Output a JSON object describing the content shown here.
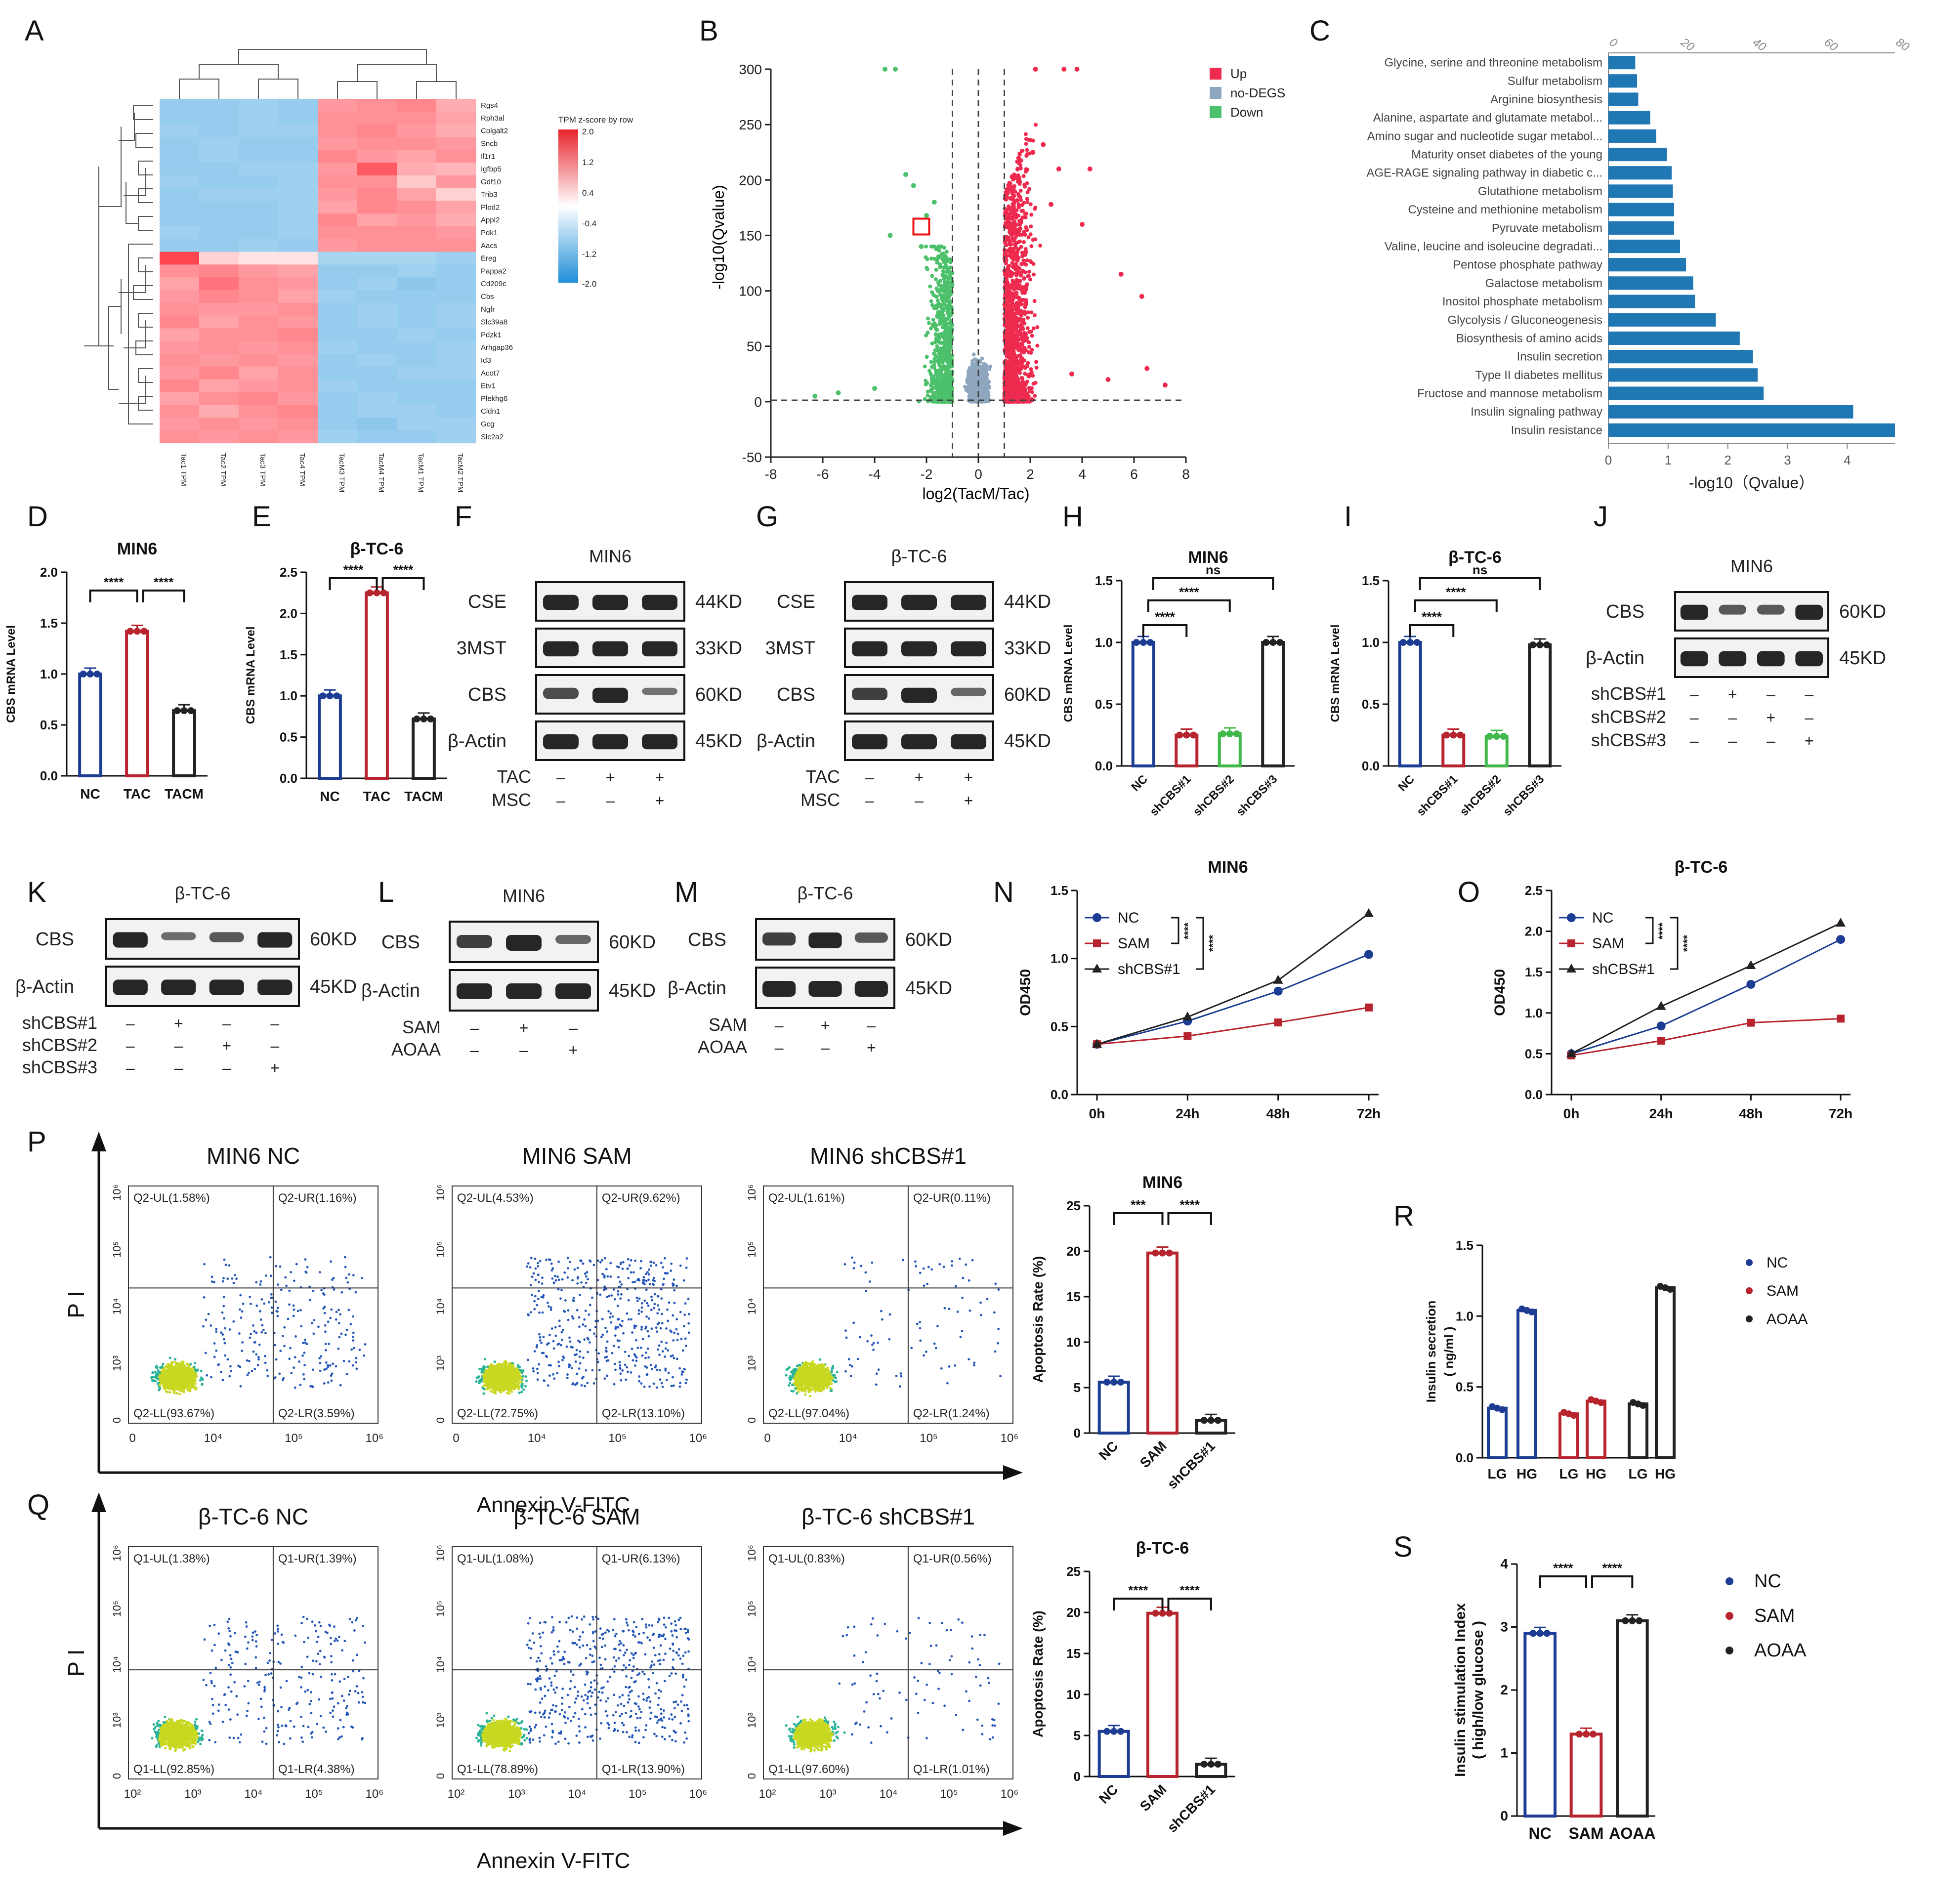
{
  "colors": {
    "red": "#ee2a4f",
    "blue": "#1f3f99",
    "green": "#4cc06a",
    "grey": "#8ea6be",
    "navy": "#1c3d93",
    "darkred": "#b8242e",
    "pgreen": "#40b84a",
    "kegg": "#1f77b4",
    "black": "#222222"
  },
  "panels": {
    "A": "A",
    "B": "B",
    "C": "C",
    "D": "D",
    "E": "E",
    "F": "F",
    "G": "G",
    "H": "H",
    "I": "I",
    "J": "J",
    "K": "K",
    "L": "L",
    "M": "M",
    "N": "N",
    "O": "O",
    "P": "P",
    "Q": "Q",
    "R": "R",
    "S": "S"
  },
  "heatmap": {
    "genes": [
      "Rgs4",
      "Rph3al",
      "Colgalt2",
      "Sncb",
      "Il1r1",
      "Igfbp5",
      "Gdf10",
      "Trib3",
      "Plod2",
      "Appl2",
      "Pdk1",
      "Aacs",
      "Ereg",
      "Pappa2",
      "Cd209c",
      "Cbs",
      "Ngfr",
      "Slc39a8",
      "Pdzk1",
      "Arhgap36",
      "Id3",
      "Acot7",
      "Etv1",
      "Plekhg6",
      "Cldn1",
      "Gcg",
      "Slc2a2"
    ],
    "samples": [
      "Tac1_TPM",
      "Tac2_TPM",
      "Tac3_TPM",
      "Tac4_TPM",
      "TacM3_TPM",
      "TacM4_TPM",
      "TacM1_TPM",
      "TacM2_TPM"
    ],
    "legend_title": "TPM z-score by row",
    "legend_ticks": [
      "2.0",
      "1.2",
      "0.4",
      "-0.4",
      "-1.2",
      "-2.0"
    ],
    "values": [
      [
        -1.2,
        -1.2,
        -1.1,
        -1.2,
        1.1,
        1.2,
        1.3,
        0.9
      ],
      [
        -1.2,
        -1.2,
        -1.1,
        -1.2,
        1.2,
        1.2,
        1.2,
        1.0
      ],
      [
        -1.1,
        -1.2,
        -1.1,
        -1.1,
        1.2,
        1.3,
        1.1,
        0.9
      ],
      [
        -1.2,
        -1.1,
        -1.2,
        -1.2,
        1.1,
        1.2,
        1.2,
        1.1
      ],
      [
        -1.2,
        -1.1,
        -1.2,
        -1.2,
        1.3,
        1.1,
        1.0,
        1.2
      ],
      [
        -1.2,
        -1.2,
        -1.1,
        -1.1,
        1.1,
        1.8,
        0.9,
        0.8
      ],
      [
        -1.1,
        -1.2,
        -1.2,
        -1.1,
        1.2,
        1.2,
        0.6,
        1.1
      ],
      [
        -1.2,
        -1.1,
        -1.1,
        -1.1,
        1.1,
        1.3,
        1.0,
        0.5
      ],
      [
        -1.2,
        -1.2,
        -1.2,
        -1.1,
        1.0,
        1.3,
        1.2,
        1.0
      ],
      [
        -1.2,
        -1.2,
        -1.2,
        -1.1,
        1.3,
        1.0,
        1.1,
        0.9
      ],
      [
        -1.1,
        -1.2,
        -1.2,
        -1.1,
        1.2,
        1.2,
        1.2,
        1.1
      ],
      [
        -1.2,
        -1.2,
        -1.1,
        -1.2,
        1.1,
        1.2,
        1.2,
        1.2
      ],
      [
        2.0,
        0.5,
        0.3,
        0.3,
        -1.0,
        -1.0,
        -1.0,
        -1.1
      ],
      [
        1.2,
        1.3,
        1.1,
        1.0,
        -1.2,
        -1.2,
        -1.1,
        -1.2
      ],
      [
        1.0,
        1.5,
        1.2,
        1.1,
        -1.2,
        -1.1,
        -1.3,
        -1.2
      ],
      [
        1.1,
        1.3,
        1.2,
        1.0,
        -1.1,
        -1.2,
        -1.2,
        -1.2
      ],
      [
        1.2,
        1.1,
        1.1,
        1.2,
        -1.2,
        -1.1,
        -1.2,
        -1.1
      ],
      [
        1.3,
        1.0,
        1.2,
        1.1,
        -1.2,
        -1.1,
        -1.2,
        -1.1
      ],
      [
        1.0,
        1.2,
        1.2,
        1.3,
        -1.2,
        -1.2,
        -1.1,
        -1.2
      ],
      [
        1.1,
        1.2,
        1.1,
        1.2,
        -1.1,
        -1.2,
        -1.2,
        -1.1
      ],
      [
        1.2,
        1.1,
        1.2,
        1.1,
        -1.2,
        -1.1,
        -1.2,
        -1.1
      ],
      [
        1.1,
        1.3,
        1.0,
        1.2,
        -1.2,
        -1.2,
        -1.1,
        -1.1
      ],
      [
        1.3,
        1.0,
        1.1,
        1.2,
        -1.1,
        -1.2,
        -1.2,
        -1.2
      ],
      [
        1.0,
        1.2,
        1.3,
        1.1,
        -1.2,
        -1.1,
        -1.2,
        -1.2
      ],
      [
        1.2,
        0.9,
        1.2,
        1.3,
        -1.2,
        -1.1,
        -1.1,
        -1.2
      ],
      [
        1.1,
        1.2,
        1.1,
        1.2,
        -1.2,
        -1.3,
        -1.1,
        -1.1
      ],
      [
        1.2,
        1.1,
        1.2,
        1.1,
        -1.1,
        -1.2,
        -1.2,
        -1.1
      ]
    ]
  },
  "chart_data": [
    {
      "id": "B",
      "type": "scatter",
      "title": "",
      "xlabel": "log2(TacM/Tac)",
      "ylabel": "-log10(Qvalue)",
      "xlim": [
        -8,
        8
      ],
      "ylim": [
        -50,
        300
      ],
      "xticks": [
        "-8",
        "-6",
        "-4",
        "-2",
        "0",
        "2",
        "4",
        "6",
        "8"
      ],
      "yticks": [
        "-50",
        "0",
        "50",
        "100",
        "150",
        "200",
        "250",
        "300"
      ],
      "legend": [
        "Up",
        "no-DEGS",
        "Down"
      ],
      "thresholds": {
        "x": [
          -1,
          1
        ],
        "y": 1.3
      },
      "highlight": {
        "x": -2.2,
        "y": 158
      },
      "extremes": {
        "down": [
          [
            -3.2,
            300
          ],
          [
            -3.6,
            300
          ],
          [
            -2.8,
            205
          ],
          [
            -2.5,
            195
          ],
          [
            -2.0,
            168
          ],
          [
            -1.7,
            180
          ],
          [
            -3.4,
            150
          ],
          [
            -2.2,
            140
          ],
          [
            -6.3,
            5
          ],
          [
            -5.4,
            8
          ],
          [
            -4.0,
            12
          ]
        ],
        "up": [
          [
            2.2,
            300
          ],
          [
            3.3,
            300
          ],
          [
            3.8,
            300
          ],
          [
            2.5,
            232
          ],
          [
            2.1,
            225
          ],
          [
            3.1,
            210
          ],
          [
            4.3,
            210
          ],
          [
            2.8,
            178
          ],
          [
            4.0,
            160
          ],
          [
            5.5,
            115
          ],
          [
            6.3,
            95
          ],
          [
            7.2,
            15
          ],
          [
            6.5,
            30
          ],
          [
            5.0,
            20
          ],
          [
            3.6,
            25
          ]
        ]
      }
    },
    {
      "id": "C",
      "type": "bar",
      "orientation": "horizontal",
      "xlabel": "-log10（Qvalue）",
      "top_axis": [
        "0",
        "20",
        "40",
        "60",
        "80"
      ],
      "bottom_axis": [
        "0",
        "1",
        "2",
        "3",
        "4"
      ],
      "xlim": [
        0,
        4.8
      ],
      "categories": [
        "Glycine, serine and threonine metabolism",
        "Sulfur metabolism",
        "Arginine biosynthesis",
        "Alanine, aspartate and glutamate metabol...",
        "Amino sugar and nucleotide sugar metabol...",
        "Maturity onset diabetes of the young",
        "AGE-RAGE signaling pathway in diabetic c...",
        "Glutathione metabolism",
        "Cysteine and methionine metabolism",
        "Pyruvate metabolism",
        "Valine, leucine and isoleucine degradati...",
        "Pentose phosphate pathway",
        "Galactose metabolism",
        "Inositol phosphate metabolism",
        "Glycolysis / Gluconeogenesis",
        "Biosynthesis of amino acids",
        "Insulin secretion",
        "Type II diabetes mellitus",
        "Fructose and mannose metabolism",
        "Insulin signaling pathway",
        "Insulin resistance"
      ],
      "values": [
        0.45,
        0.48,
        0.5,
        0.7,
        0.8,
        0.98,
        1.06,
        1.08,
        1.1,
        1.1,
        1.2,
        1.3,
        1.42,
        1.45,
        1.8,
        2.2,
        2.42,
        2.5,
        2.6,
        4.1,
        4.8
      ]
    },
    {
      "id": "D",
      "type": "bar",
      "title": "MIN6",
      "ylabel": "CBS mRNA Level",
      "categories": [
        "NC",
        "TAC",
        "TACM"
      ],
      "values": [
        1.0,
        1.42,
        0.64
      ],
      "ylim": [
        0,
        2.0
      ],
      "yticks": [
        "0.0",
        "0.5",
        "1.0",
        "1.5",
        "2.0"
      ],
      "sig": [
        "****",
        "****"
      ]
    },
    {
      "id": "E",
      "type": "bar",
      "title": "β-TC-6",
      "ylabel": "CBS mRNA Level",
      "categories": [
        "NC",
        "TAC",
        "TACM"
      ],
      "values": [
        1.0,
        2.25,
        0.72
      ],
      "ylim": [
        0,
        2.5
      ],
      "yticks": [
        "0.0",
        "0.5",
        "1.0",
        "1.5",
        "2.0",
        "2.5"
      ],
      "sig": [
        "****",
        "****"
      ]
    },
    {
      "id": "H",
      "type": "bar",
      "title": "MIN6",
      "ylabel": "CBS mRNA Level",
      "categories": [
        "NC",
        "shCBS#1",
        "shCBS#2",
        "shCBS#3"
      ],
      "values": [
        1.0,
        0.25,
        0.26,
        1.0
      ],
      "ylim": [
        0,
        1.5
      ],
      "yticks": [
        "0.0",
        "0.5",
        "1.0",
        "1.5"
      ],
      "sig": [
        "****",
        "****",
        "ns"
      ]
    },
    {
      "id": "I",
      "type": "bar",
      "title": "β-TC-6",
      "ylabel": "CBS mRNA Level",
      "categories": [
        "NC",
        "shCBS#1",
        "shCBS#2",
        "shCBS#3"
      ],
      "values": [
        1.0,
        0.25,
        0.24,
        0.98
      ],
      "ylim": [
        0,
        1.5
      ],
      "yticks": [
        "0.0",
        "0.5",
        "1.0",
        "1.5"
      ],
      "sig": [
        "****",
        "****",
        "ns"
      ]
    },
    {
      "id": "N",
      "type": "line",
      "title": "MIN6",
      "ylabel": "OD450",
      "x": [
        "0h",
        "24h",
        "48h",
        "72h"
      ],
      "ylim": [
        0,
        1.5
      ],
      "yticks": [
        "0.0",
        "0.5",
        "1.0",
        "1.5"
      ],
      "series": [
        {
          "name": "NC",
          "values": [
            0.37,
            0.54,
            0.76,
            1.03
          ]
        },
        {
          "name": "SAM",
          "values": [
            0.37,
            0.43,
            0.53,
            0.64
          ]
        },
        {
          "name": "shCBS#1",
          "values": [
            0.37,
            0.57,
            0.84,
            1.33
          ]
        }
      ],
      "sig": [
        "****",
        "****"
      ]
    },
    {
      "id": "O",
      "type": "line",
      "title": "β-TC-6",
      "ylabel": "OD450",
      "x": [
        "0h",
        "24h",
        "48h",
        "72h"
      ],
      "ylim": [
        0,
        2.5
      ],
      "yticks": [
        "0.0",
        "0.5",
        "1.0",
        "1.5",
        "2.0",
        "2.5"
      ],
      "series": [
        {
          "name": "NC",
          "values": [
            0.5,
            0.84,
            1.35,
            1.9
          ]
        },
        {
          "name": "SAM",
          "values": [
            0.48,
            0.66,
            0.88,
            0.93
          ]
        },
        {
          "name": "shCBS#1",
          "values": [
            0.5,
            1.08,
            1.58,
            2.1
          ]
        }
      ],
      "sig": [
        "****",
        "****"
      ]
    },
    {
      "id": "P_bar",
      "type": "bar",
      "title": "MIN6",
      "ylabel": "Apoptosis Rate (%)",
      "categories": [
        "NC",
        "SAM",
        "shCBS#1"
      ],
      "values": [
        5.6,
        19.8,
        1.4
      ],
      "ylim": [
        0,
        25
      ],
      "yticks": [
        "0",
        "5",
        "10",
        "15",
        "20",
        "25"
      ],
      "sig": [
        "***",
        "****"
      ]
    },
    {
      "id": "Q_bar",
      "type": "bar",
      "title": "β-TC-6",
      "ylabel": "Apoptosis Rate (%)",
      "categories": [
        "NC",
        "SAM",
        "shCBS#1"
      ],
      "values": [
        5.5,
        19.9,
        1.5
      ],
      "ylim": [
        0,
        25
      ],
      "yticks": [
        "0",
        "5",
        "10",
        "15",
        "20",
        "25"
      ],
      "sig": [
        "****",
        "****"
      ]
    },
    {
      "id": "R",
      "type": "bar",
      "ylabel": "Insulin secretion\n( ng/ml )",
      "categories": [
        "LG",
        "HG",
        "LG",
        "HG",
        "LG",
        "HG"
      ],
      "groups": [
        "NC",
        "SAM",
        "AOAA"
      ],
      "values": [
        0.35,
        1.04,
        0.31,
        0.4,
        0.38,
        1.2
      ],
      "ylim": [
        0,
        1.5
      ],
      "yticks": [
        "0.0",
        "0.5",
        "1.0",
        "1.5"
      ]
    },
    {
      "id": "S",
      "type": "bar",
      "ylabel": "Insulin stimulation Index\n( high/low glucose )",
      "categories": [
        "NC",
        "SAM",
        "AOAA"
      ],
      "values": [
        2.9,
        1.3,
        3.1
      ],
      "ylim": [
        0,
        4
      ],
      "yticks": [
        "0",
        "1",
        "2",
        "3",
        "4"
      ],
      "sig": [
        "****",
        "****"
      ]
    }
  ],
  "blots": {
    "F": {
      "title": "MIN6",
      "rows": [
        "CSE",
        "3MST",
        "CBS",
        "β-Actin"
      ],
      "sizes": [
        "44KD",
        "33KD",
        "60KD",
        "45KD"
      ],
      "cond": [
        [
          "TAC",
          "–",
          "+",
          "+"
        ],
        [
          "MSC",
          "–",
          "–",
          "+"
        ]
      ]
    },
    "G": {
      "title": "β-TC-6",
      "rows": [
        "CSE",
        "3MST",
        "CBS",
        "β-Actin"
      ],
      "sizes": [
        "44KD",
        "33KD",
        "60KD",
        "45KD"
      ],
      "cond": [
        [
          "TAC",
          "–",
          "+",
          "+"
        ],
        [
          "MSC",
          "–",
          "–",
          "+"
        ]
      ]
    },
    "J": {
      "title": "MIN6",
      "rows": [
        "CBS",
        "β-Actin"
      ],
      "sizes": [
        "60KD",
        "45KD"
      ],
      "cond": [
        [
          "shCBS#1",
          "–",
          "+",
          "–",
          "–"
        ],
        [
          "shCBS#2",
          "–",
          "–",
          "+",
          "–"
        ],
        [
          "shCBS#3",
          "–",
          "–",
          "–",
          "+"
        ]
      ]
    },
    "K": {
      "title": "β-TC-6",
      "rows": [
        "CBS",
        "β-Actin"
      ],
      "sizes": [
        "60KD",
        "45KD"
      ],
      "cond": [
        [
          "shCBS#1",
          "–",
          "+",
          "–",
          "–"
        ],
        [
          "shCBS#2",
          "–",
          "–",
          "+",
          "–"
        ],
        [
          "shCBS#3",
          "–",
          "–",
          "–",
          "+"
        ]
      ]
    },
    "L": {
      "title": "MIN6",
      "rows": [
        "CBS",
        "β-Actin"
      ],
      "sizes": [
        "60KD",
        "45KD"
      ],
      "cond": [
        [
          "SAM",
          "–",
          "+",
          "–"
        ],
        [
          "AOAA",
          "–",
          "–",
          "+"
        ]
      ]
    },
    "M": {
      "title": "β-TC-6",
      "rows": [
        "CBS",
        "β-Actin"
      ],
      "sizes": [
        "60KD",
        "45KD"
      ],
      "cond": [
        [
          "SAM",
          "–",
          "+",
          "–"
        ],
        [
          "AOAA",
          "–",
          "–",
          "+"
        ]
      ]
    }
  },
  "flow": {
    "P": {
      "axis_y": "P  I",
      "axis_x": "Annexin V-FITC",
      "ticks_x": [
        "0",
        "10⁴",
        "10⁵",
        "10⁶"
      ],
      "ticks_y": [
        "0",
        "10³",
        "10⁴",
        "10⁵",
        "10⁶"
      ],
      "plots": [
        {
          "title": "MIN6 NC",
          "UL": "Q2-UL(1.58%)",
          "UR": "Q2-UR(1.16%)",
          "LL": "Q2-LL(93.67%)",
          "LR": "Q2-LR(3.59%)"
        },
        {
          "title": "MIN6 SAM",
          "UL": "Q2-UL(4.53%)",
          "UR": "Q2-UR(9.62%)",
          "LL": "Q2-LL(72.75%)",
          "LR": "Q2-LR(13.10%)"
        },
        {
          "title": "MIN6 shCBS#1",
          "UL": "Q2-UL(1.61%)",
          "UR": "Q2-UR(0.11%)",
          "LL": "Q2-LL(97.04%)",
          "LR": "Q2-LR(1.24%)"
        }
      ]
    },
    "Q": {
      "axis_y": "P  I",
      "axis_x": "Annexin V-FITC",
      "ticks_x": [
        "10²",
        "10³",
        "10⁴",
        "10⁵",
        "10⁶"
      ],
      "ticks_y": [
        "0",
        "10³",
        "10⁴",
        "10⁵",
        "10⁶"
      ],
      "plots": [
        {
          "title": "β-TC-6 NC",
          "UL": "Q1-UL(1.38%)",
          "UR": "Q1-UR(1.39%)",
          "LL": "Q1-LL(92.85%)",
          "LR": "Q1-LR(4.38%)"
        },
        {
          "title": "β-TC-6 SAM",
          "UL": "Q1-UL(1.08%)",
          "UR": "Q1-UR(6.13%)",
          "LL": "Q1-LL(78.89%)",
          "LR": "Q1-LR(13.90%)"
        },
        {
          "title": "β-TC-6 shCBS#1",
          "UL": "Q1-UL(0.83%)",
          "UR": "Q1-UR(0.56%)",
          "LL": "Q1-LL(97.60%)",
          "LR": "Q1-LR(1.01%)"
        }
      ]
    }
  },
  "legends": {
    "R": [
      "NC",
      "SAM",
      "AOAA"
    ],
    "S": [
      "NC",
      "SAM",
      "AOAA"
    ]
  }
}
